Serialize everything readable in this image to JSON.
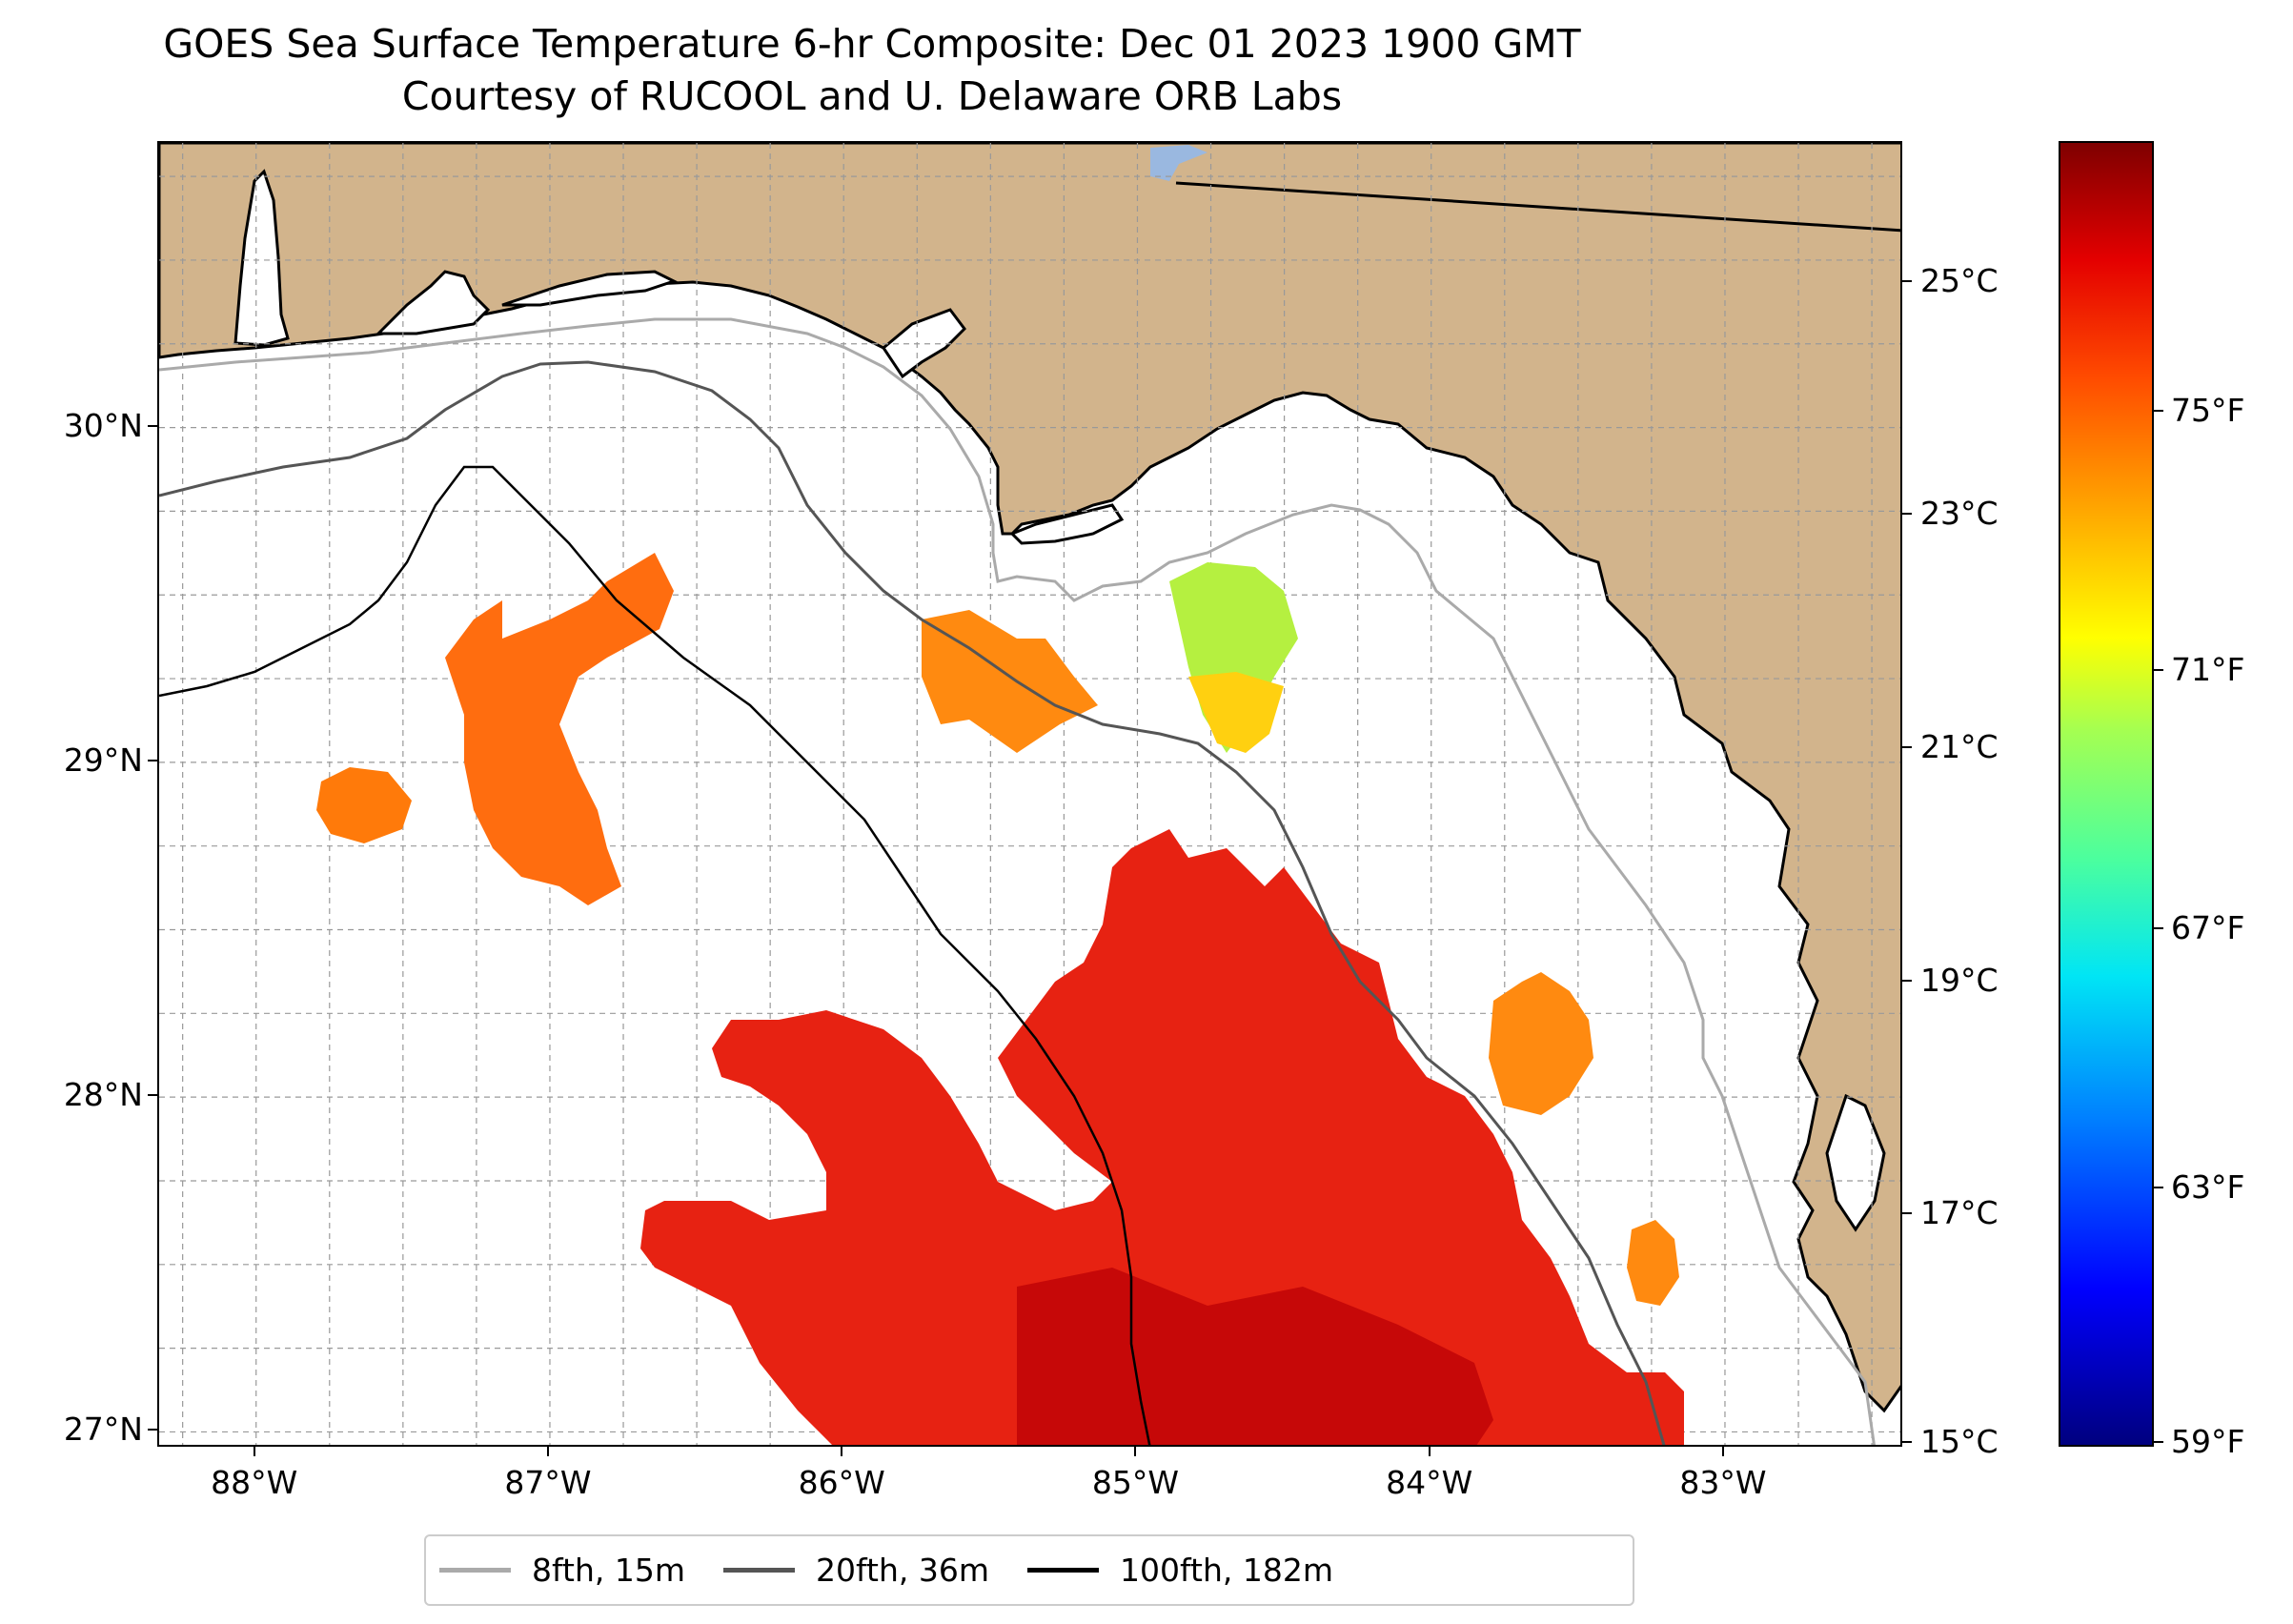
{
  "figure": {
    "title_line1": "GOES Sea Surface Temperature 6-hr Composite: Dec 01 2023 1900 GMT",
    "title_line2": "Courtesy of RUCOOL and U. Delaware ORB Labs"
  },
  "map": {
    "extent": {
      "lon_min": -88.33,
      "lon_max": -82.39,
      "lat_min": 26.95,
      "lat_max": 30.85
    },
    "land_color": "#d2b48c",
    "lat_ticks": [
      {
        "value": 30,
        "label": "30°N"
      },
      {
        "value": 29,
        "label": "29°N"
      },
      {
        "value": 28,
        "label": "28°N"
      },
      {
        "value": 27,
        "label": "27°N"
      }
    ],
    "lon_ticks": [
      {
        "value": -88,
        "label": "88°W"
      },
      {
        "value": -87,
        "label": "87°W"
      },
      {
        "value": -86,
        "label": "86°W"
      },
      {
        "value": -85,
        "label": "85°W"
      },
      {
        "value": -84,
        "label": "84°W"
      },
      {
        "value": -83,
        "label": "83°W"
      }
    ]
  },
  "colorbar": {
    "celsius_min": 15,
    "celsius_max": 26.2,
    "celsius_labels": [
      {
        "value": 25,
        "label": "25°C"
      },
      {
        "value": 23,
        "label": "23°C"
      },
      {
        "value": 21,
        "label": "21°C"
      },
      {
        "value": 19,
        "label": "19°C"
      },
      {
        "value": 17,
        "label": "17°C"
      },
      {
        "value": 15,
        "label": "15°C"
      }
    ],
    "fahrenheit_labels": [
      {
        "value": 75,
        "label": "75°F"
      },
      {
        "value": 71,
        "label": "71°F"
      },
      {
        "value": 67,
        "label": "67°F"
      },
      {
        "value": 63,
        "label": "63°F"
      },
      {
        "value": 59,
        "label": "59°F"
      }
    ]
  },
  "legend": {
    "items": [
      {
        "label": "8fth, 15m",
        "color": "#aaaaaa"
      },
      {
        "label": "20fth, 36m",
        "color": "#555555"
      },
      {
        "label": "100fth, 182m",
        "color": "#000000"
      }
    ]
  }
}
